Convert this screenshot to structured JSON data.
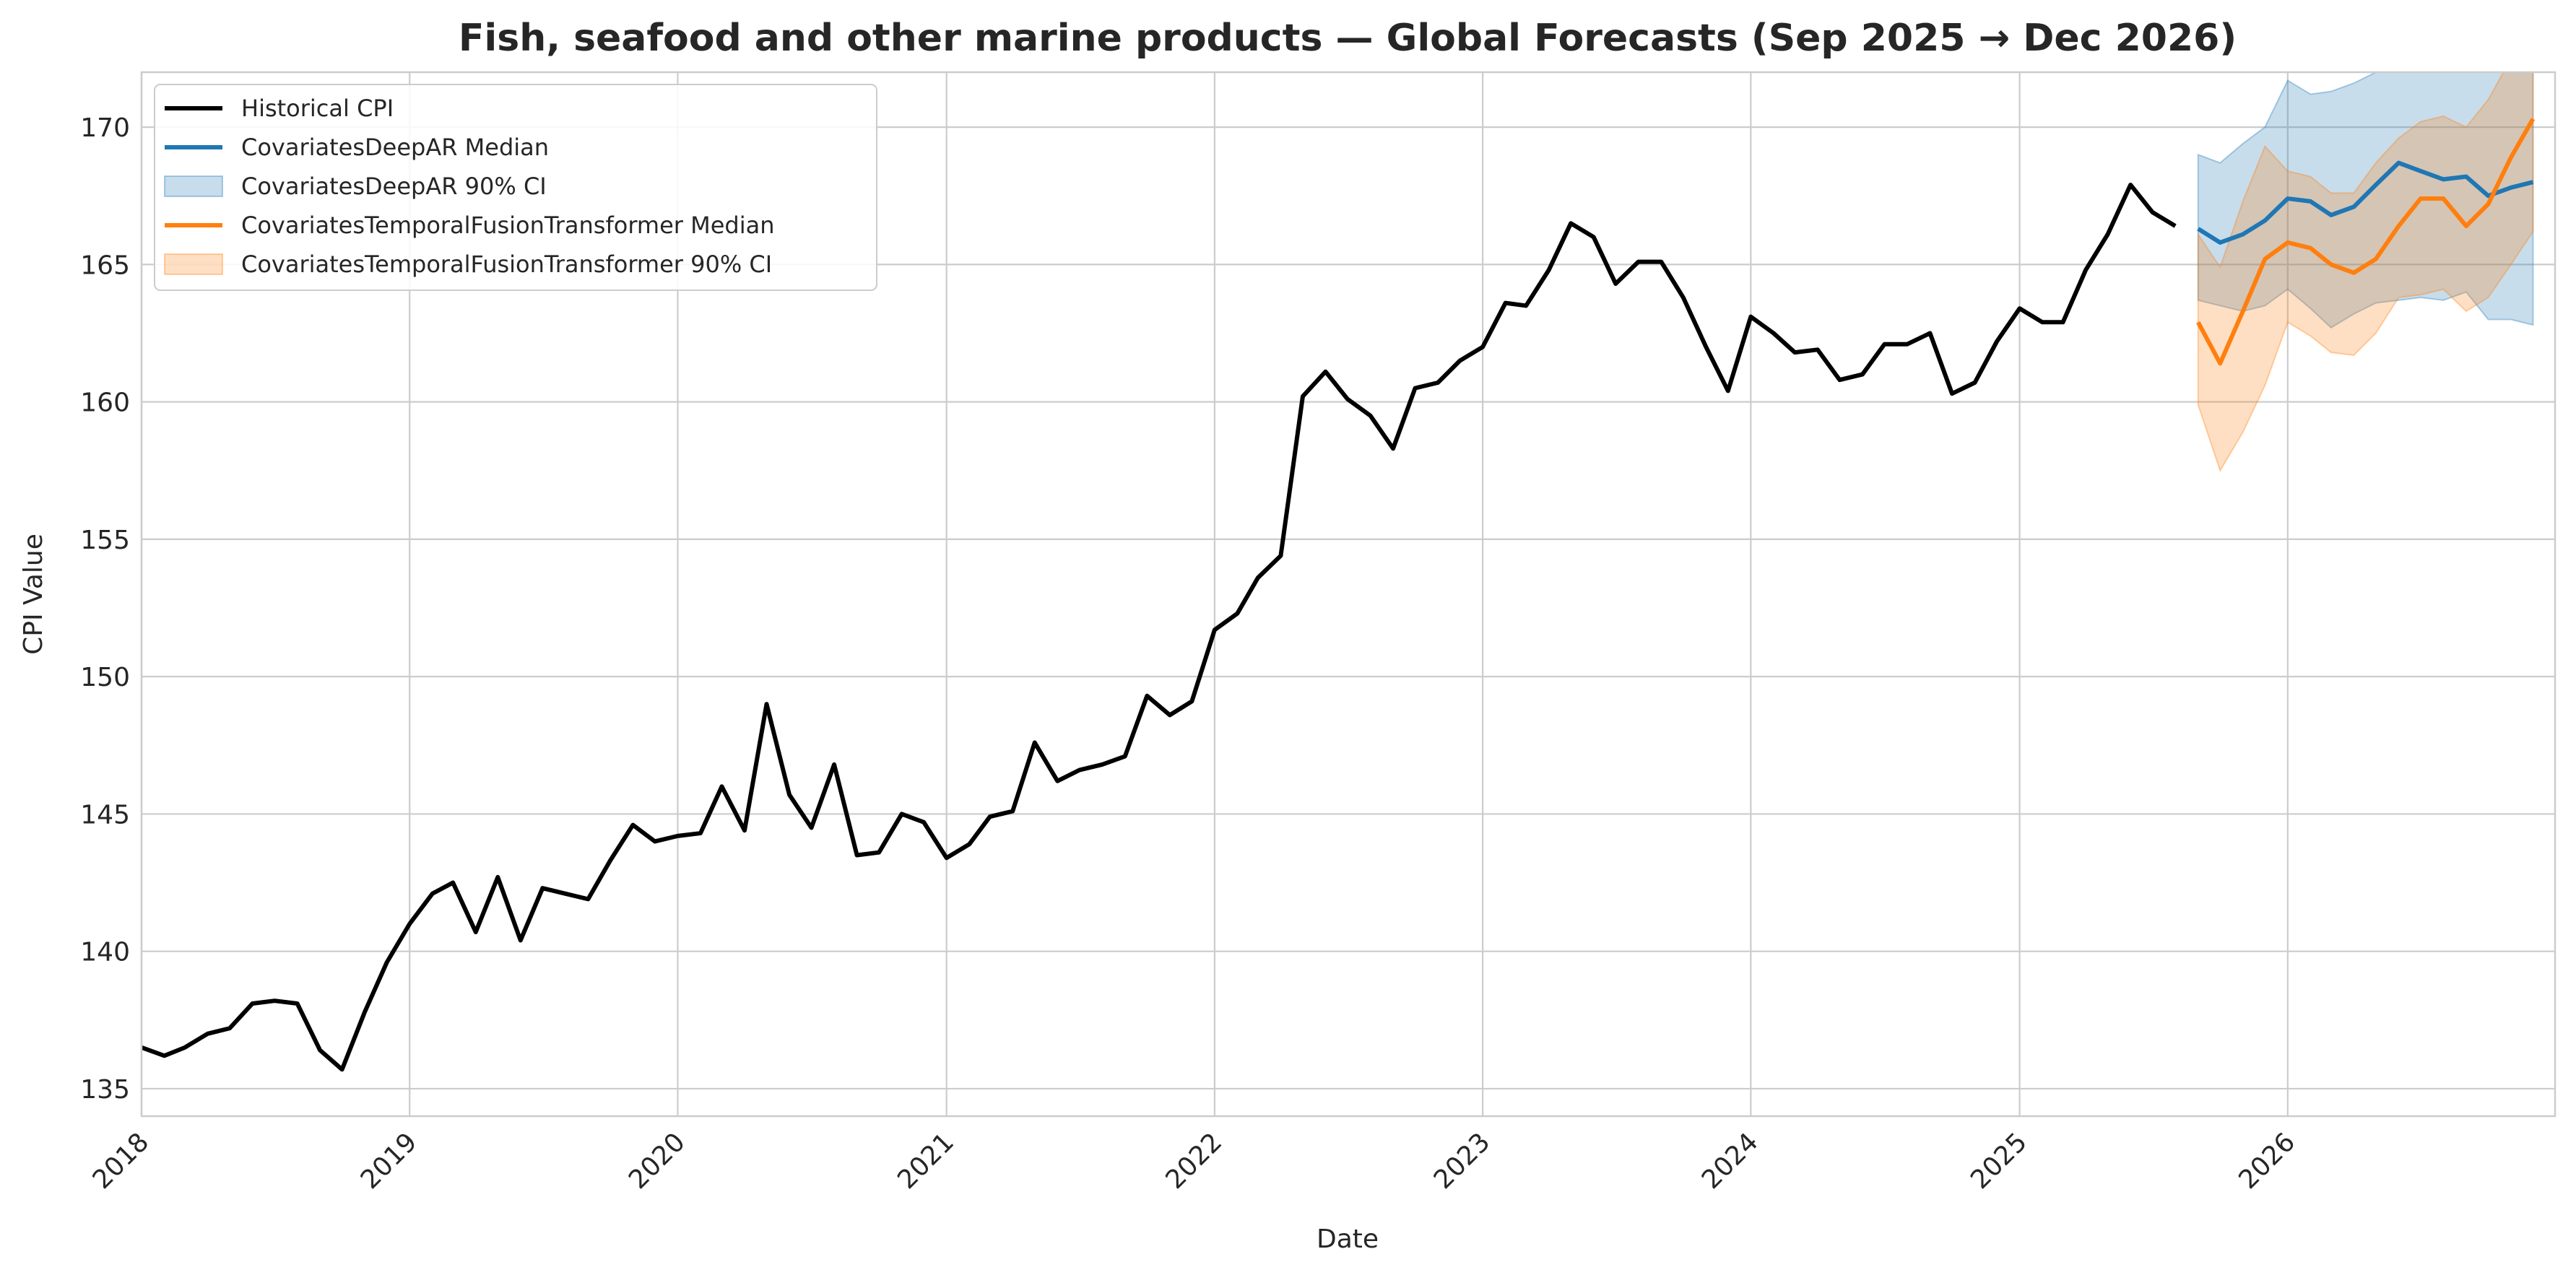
{
  "chart_data": {
    "type": "line",
    "title": "Fish, seafood and other marine products — Global Forecasts (Sep 2025 → Dec 2026)",
    "xlabel": "Date",
    "ylabel": "CPI Value",
    "xlim": [
      "2018-01-01",
      "2026-12-31"
    ],
    "ylim": [
      134,
      172
    ],
    "x_ticks": [
      "2018",
      "2019",
      "2020",
      "2021",
      "2022",
      "2023",
      "2024",
      "2025",
      "2026"
    ],
    "y_ticks": [
      "135",
      "140",
      "145",
      "150",
      "155",
      "160",
      "165",
      "170"
    ],
    "grid": true,
    "legend_position": "top-left",
    "legend": [
      {
        "label": "Historical CPI",
        "kind": "line",
        "color": "#000000"
      },
      {
        "label": "CovariatesDeepAR Median",
        "kind": "line",
        "color": "#1f77b4"
      },
      {
        "label": "CovariatesDeepAR 90% CI",
        "kind": "band",
        "color": "#1f77b4"
      },
      {
        "label": "CovariatesTemporalFusionTransformer Median",
        "kind": "line",
        "color": "#ff7f0e"
      },
      {
        "label": "CovariatesTemporalFusionTransformer 90% CI",
        "kind": "band",
        "color": "#ff7f0e"
      }
    ],
    "historical": {
      "name": "Historical CPI",
      "color": "#000000",
      "x": [
        "2018-01",
        "2018-02",
        "2018-03",
        "2018-04",
        "2018-05",
        "2018-06",
        "2018-07",
        "2018-08",
        "2018-09",
        "2018-10",
        "2018-11",
        "2018-12",
        "2019-01",
        "2019-02",
        "2019-03",
        "2019-04",
        "2019-05",
        "2019-06",
        "2019-07",
        "2019-08",
        "2019-09",
        "2019-10",
        "2019-11",
        "2019-12",
        "2020-01",
        "2020-02",
        "2020-03",
        "2020-04",
        "2020-05",
        "2020-06",
        "2020-07",
        "2020-08",
        "2020-09",
        "2020-10",
        "2020-11",
        "2020-12",
        "2021-01",
        "2021-02",
        "2021-03",
        "2021-04",
        "2021-05",
        "2021-06",
        "2021-07",
        "2021-08",
        "2021-09",
        "2021-10",
        "2021-11",
        "2021-12",
        "2022-01",
        "2022-02",
        "2022-03",
        "2022-04",
        "2022-05",
        "2022-06",
        "2022-07",
        "2022-08",
        "2022-09",
        "2022-10",
        "2022-11",
        "2022-12",
        "2023-01",
        "2023-02",
        "2023-03",
        "2023-04",
        "2023-05",
        "2023-06",
        "2023-07",
        "2023-08",
        "2023-09",
        "2023-10",
        "2023-11",
        "2023-12",
        "2024-01",
        "2024-02",
        "2024-03",
        "2024-04",
        "2024-05",
        "2024-06",
        "2024-07",
        "2024-08",
        "2024-09",
        "2024-10",
        "2024-11",
        "2024-12",
        "2025-01",
        "2025-02",
        "2025-03",
        "2025-04",
        "2025-05",
        "2025-06",
        "2025-07",
        "2025-08"
      ],
      "y": [
        136.5,
        136.2,
        136.5,
        137.0,
        137.2,
        138.1,
        138.2,
        138.1,
        136.4,
        135.7,
        137.8,
        139.6,
        141.0,
        142.1,
        142.5,
        140.7,
        142.7,
        140.4,
        142.3,
        142.1,
        141.9,
        143.3,
        144.6,
        144.0,
        144.2,
        144.3,
        146.0,
        144.4,
        149.0,
        145.7,
        144.5,
        146.8,
        143.5,
        143.6,
        145.0,
        144.7,
        143.4,
        143.9,
        144.9,
        145.1,
        147.6,
        146.2,
        146.6,
        146.8,
        147.1,
        149.3,
        148.6,
        149.1,
        151.7,
        152.3,
        153.6,
        154.4,
        160.2,
        161.1,
        160.1,
        159.5,
        158.3,
        160.5,
        160.7,
        161.5,
        162.0,
        163.6,
        163.5,
        164.8,
        166.5,
        166.0,
        164.3,
        165.1,
        165.1,
        163.8,
        162.0,
        160.4,
        163.1,
        162.5,
        161.8,
        161.9,
        160.8,
        161.0,
        162.1,
        162.1,
        162.5,
        160.3,
        160.7,
        162.2,
        163.4,
        162.9,
        162.9,
        164.8,
        166.1,
        167.9,
        166.9,
        166.4
      ]
    },
    "forecast_x": [
      "2025-09",
      "2025-10",
      "2025-11",
      "2025-12",
      "2026-01",
      "2026-02",
      "2026-03",
      "2026-04",
      "2026-05",
      "2026-06",
      "2026-07",
      "2026-08",
      "2026-09",
      "2026-10",
      "2026-11",
      "2026-12"
    ],
    "series": [
      {
        "name": "CovariatesDeepAR Median",
        "ci_name": "CovariatesDeepAR 90% CI",
        "color": "#1f77b4",
        "median": [
          166.3,
          165.8,
          166.1,
          166.6,
          167.4,
          167.3,
          166.8,
          167.1,
          167.9,
          168.7,
          168.4,
          168.1,
          168.2,
          167.5,
          167.8,
          168.0
        ],
        "lower": [
          163.7,
          163.5,
          163.3,
          163.5,
          164.1,
          163.4,
          162.7,
          163.2,
          163.6,
          163.7,
          163.8,
          163.7,
          164.0,
          163.0,
          163.0,
          162.8
        ],
        "upper": [
          169.0,
          168.7,
          169.4,
          170.0,
          171.7,
          171.2,
          171.3,
          171.6,
          172.0,
          172.5,
          172.5,
          172.5,
          172.5,
          172.5,
          172.5,
          172.5
        ]
      },
      {
        "name": "CovariatesTemporalFusionTransformer Median",
        "ci_name": "CovariatesTemporalFusionTransformer 90% CI",
        "color": "#ff7f0e",
        "median": [
          162.9,
          161.4,
          163.3,
          165.2,
          165.8,
          165.6,
          165.0,
          164.7,
          165.2,
          166.4,
          167.4,
          167.4,
          166.4,
          167.2,
          168.9,
          170.3
        ],
        "lower": [
          159.9,
          157.5,
          158.9,
          160.6,
          162.9,
          162.4,
          161.8,
          161.7,
          162.5,
          163.8,
          163.9,
          164.1,
          163.3,
          163.8,
          165.0,
          166.2
        ],
        "upper": [
          166.1,
          164.9,
          167.3,
          169.3,
          168.4,
          168.2,
          167.6,
          167.6,
          168.7,
          169.6,
          170.2,
          170.4,
          170.0,
          171.0,
          172.5,
          172.5
        ]
      }
    ]
  }
}
